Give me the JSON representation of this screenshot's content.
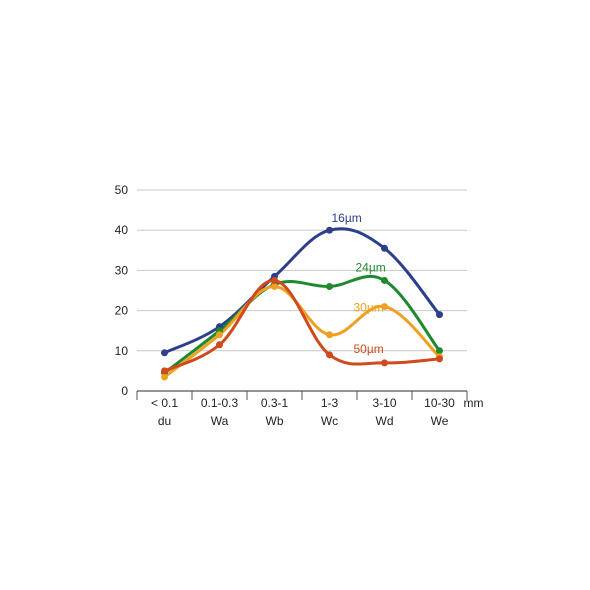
{
  "chart_data": {
    "type": "line",
    "categories": [
      {
        "range": "< 0.1",
        "code": "du"
      },
      {
        "range": "0.1-0.3",
        "code": "Wa"
      },
      {
        "range": "0.3-1",
        "code": "Wb"
      },
      {
        "range": "1-3",
        "code": "Wc"
      },
      {
        "range": "3-10",
        "code": "Wd"
      },
      {
        "range": "10-30",
        "code": "We"
      }
    ],
    "x_unit": "mm",
    "ylim": [
      0,
      50
    ],
    "yticks": [
      "0",
      "10",
      "20",
      "30",
      "40",
      "50"
    ],
    "grid": true,
    "smooth": true,
    "series": [
      {
        "name": "16µm",
        "color": "#2b3f8c",
        "values": [
          9.5,
          16,
          28.5,
          40,
          35.5,
          19
        ]
      },
      {
        "name": "24µm",
        "color": "#1e8a2e",
        "values": [
          4.5,
          15,
          26.5,
          26,
          27.5,
          10
        ]
      },
      {
        "name": "30µm",
        "color": "#f0a020",
        "values": [
          3.5,
          14,
          26,
          14,
          21,
          8.5
        ]
      },
      {
        "name": "50µm",
        "color": "#cf4a1c",
        "values": [
          5,
          11.5,
          27.5,
          9,
          7,
          8
        ]
      }
    ]
  }
}
